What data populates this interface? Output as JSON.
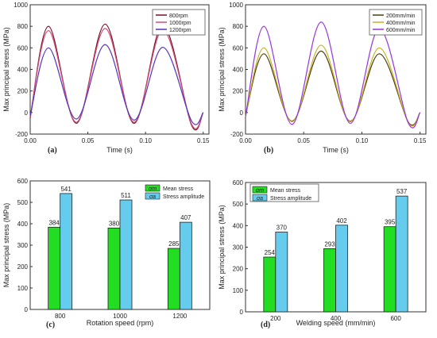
{
  "chart_data": [
    {
      "type": "line",
      "panel_label": "(a)",
      "xlabel": "Time (s)",
      "ylabel": "Max principal stress (MPa)",
      "xlim": [
        0,
        0.155
      ],
      "ylim": [
        -200,
        1000
      ],
      "xticks": [
        "0.00",
        "0.05",
        "0.10",
        "0.15"
      ],
      "yticks": [
        "-200",
        "0",
        "200",
        "400",
        "600",
        "800",
        "1000"
      ],
      "legend_position": "top-right",
      "x": [
        0.0,
        0.016,
        0.04,
        0.065,
        0.09,
        0.115,
        0.14,
        0.15
      ],
      "series": [
        {
          "name": "800rpm",
          "color": "#7a1020",
          "values": [
            -50,
            800,
            -100,
            820,
            -100,
            810,
            -120,
            0
          ]
        },
        {
          "name": "1000rpm",
          "color": "#d04a7a",
          "values": [
            -40,
            760,
            -90,
            780,
            -90,
            770,
            -110,
            0
          ]
        },
        {
          "name": "1200rpm",
          "color": "#5533bb",
          "values": [
            -30,
            600,
            -60,
            630,
            -70,
            605,
            -80,
            0
          ]
        }
      ]
    },
    {
      "type": "line",
      "panel_label": "(b)",
      "xlabel": "Time (s)",
      "ylabel": "Max principal stress (MPa)",
      "xlim": [
        0,
        0.155
      ],
      "ylim": [
        -200,
        1000
      ],
      "xticks": [
        "0.00",
        "0.05",
        "0.10",
        "0.15"
      ],
      "yticks": [
        "-200",
        "0",
        "200",
        "400",
        "600",
        "800",
        "1000"
      ],
      "legend_position": "top-right",
      "x": [
        0.0,
        0.016,
        0.04,
        0.065,
        0.09,
        0.115,
        0.14,
        0.15
      ],
      "series": [
        {
          "name": "200mm/min",
          "color": "#4a3c10",
          "values": [
            -30,
            545,
            -80,
            570,
            -80,
            545,
            -90,
            0
          ]
        },
        {
          "name": "400mm/min",
          "color": "#c8b020",
          "values": [
            -35,
            600,
            -85,
            625,
            -85,
            600,
            -95,
            0
          ]
        },
        {
          "name": "600mm/min",
          "color": "#9933dd",
          "values": [
            -40,
            800,
            -110,
            840,
            -100,
            780,
            -100,
            0
          ]
        }
      ]
    },
    {
      "type": "bar",
      "panel_label": "(c)",
      "xlabel": "Rotation speed (rpm)",
      "ylabel": "Max principal stress (MPa)",
      "categories": [
        "800",
        "1000",
        "1200"
      ],
      "ylim": [
        0,
        600
      ],
      "yticks": [
        "0",
        "100",
        "200",
        "300",
        "400",
        "500",
        "600"
      ],
      "legend_position": "top-right",
      "series": [
        {
          "name": "Mean stress",
          "symbol": "σm",
          "color": "#22dd22",
          "values": [
            384,
            380,
            285
          ]
        },
        {
          "name": "Stress amplitude",
          "symbol": "σa",
          "color": "#66ccee",
          "values": [
            541,
            511,
            407
          ]
        }
      ]
    },
    {
      "type": "bar",
      "panel_label": "(d)",
      "xlabel": "Welding speed (mm/min)",
      "ylabel": "Max principal stress (MPa)",
      "categories": [
        "200",
        "400",
        "600"
      ],
      "ylim": [
        0,
        600
      ],
      "yticks": [
        "0",
        "100",
        "200",
        "300",
        "400",
        "500",
        "600"
      ],
      "legend_position": "top-left",
      "series": [
        {
          "name": "Mean stress",
          "symbol": "σm",
          "color": "#22dd22",
          "values": [
            254,
            293,
            395
          ]
        },
        {
          "name": "Stress amplitude",
          "symbol": "σa",
          "color": "#66ccee",
          "values": [
            370,
            402,
            537
          ]
        }
      ]
    }
  ]
}
